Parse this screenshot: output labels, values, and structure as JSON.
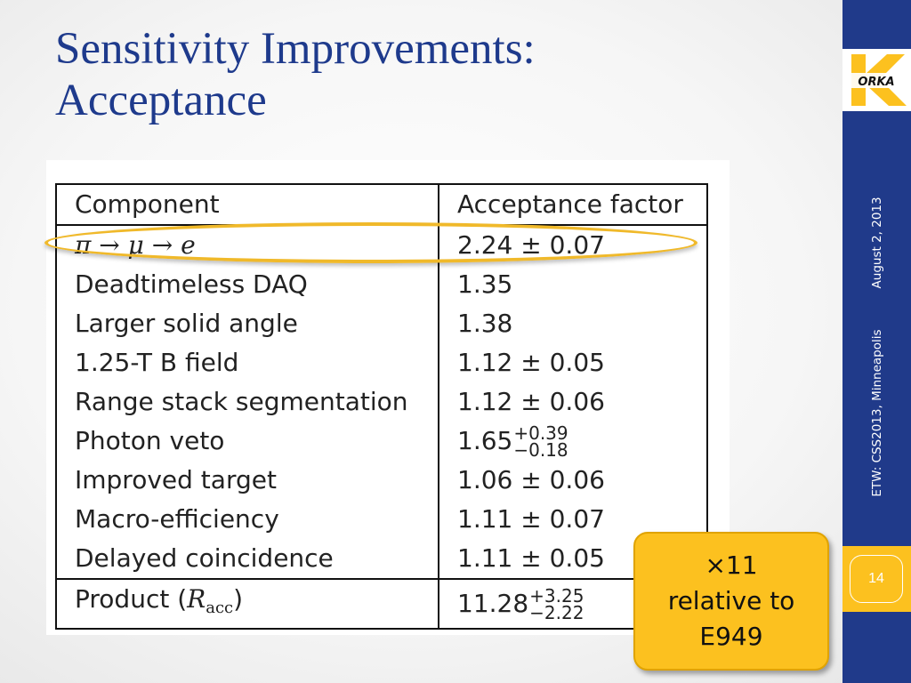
{
  "title": {
    "line1": "Sensitivity Improvements:",
    "line2": "Acceptance"
  },
  "table": {
    "headers": [
      "Component",
      "Acceptance factor"
    ],
    "rows": [
      {
        "component": "π → μ → e",
        "factor": "2.24 ± 0.07"
      },
      {
        "component": "Deadtimeless DAQ",
        "factor": "1.35"
      },
      {
        "component": "Larger solid angle",
        "factor": "1.38"
      },
      {
        "component": "1.25-T B field",
        "factor": "1.12 ± 0.05"
      },
      {
        "component": "Range stack segmentation",
        "factor": "1.12 ± 0.06"
      },
      {
        "component": "Photon veto",
        "factor_main": "1.65",
        "factor_sup": "+0.39",
        "factor_sub": "−0.18"
      },
      {
        "component": "Improved target",
        "factor": "1.06 ± 0.06"
      },
      {
        "component": "Macro-efficiency",
        "factor": "1.11 ± 0.07"
      },
      {
        "component": "Delayed coincidence",
        "factor": "1.11 ± 0.05"
      }
    ],
    "product": {
      "label": "Product (",
      "symbol": "R",
      "subscript": "acc",
      "close": ")",
      "factor_main": "11.28",
      "factor_sup": "+3.25",
      "factor_sub": "−2.22"
    }
  },
  "callout": {
    "line1": "×11",
    "line2": "relative to",
    "line3": "E949"
  },
  "sidebar": {
    "logo_text": "ORKA",
    "logo_letter": "K",
    "location": "ETW: CSS2013, Minneapolis",
    "date": "August 2, 2013",
    "page_number": "14"
  },
  "colors": {
    "title": "#1e3a8c",
    "sidebar": "#203a8a",
    "accent": "#fcc11f"
  }
}
